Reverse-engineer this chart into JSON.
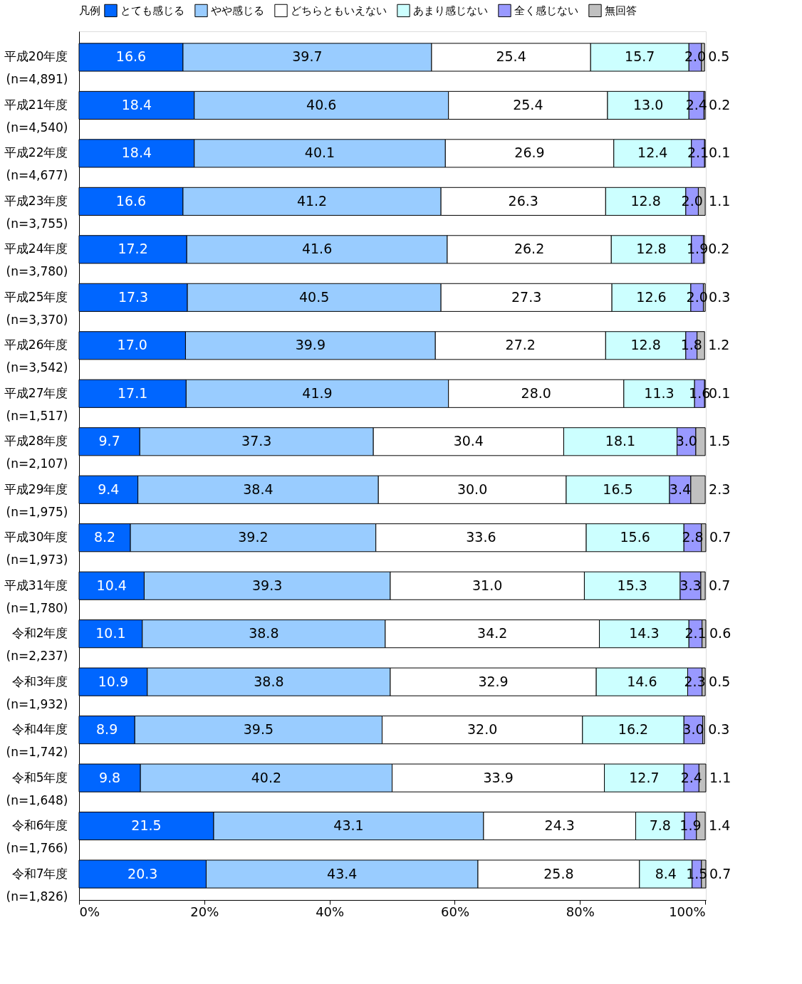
{
  "chart_data": {
    "type": "bar",
    "orientation": "horizontal",
    "stacked": true,
    "legend_title": "凡例",
    "legend": "top",
    "grid": false,
    "categories": [
      "平成20年度\n(n=4,891)",
      "平成21年度\n(n=4,540)",
      "平成22年度\n(n=4,677)",
      "平成23年度\n(n=3,755)",
      "平成24年度\n(n=3,780)",
      "平成25年度\n(n=3,370)",
      "平成26年度\n(n=3,542)",
      "平成27年度\n(n=1,517)",
      "平成28年度\n(n=2,107)",
      "平成29年度\n(n=1,975)",
      "平成30年度\n(n=1,973)",
      "平成31年度\n(n=1,780)",
      "令和2年度\n(n=2,237)",
      "令和3年度\n(n=1,932)",
      "令和4年度\n(n=1,742)",
      "令和5年度\n(n=1,648)",
      "令和6年度\n(n=1,766)",
      "令和7年度\n(n=1,826)"
    ],
    "series": [
      {
        "name": "とても感じる",
        "color": "#0066ff",
        "values": [
          16.6,
          18.4,
          18.4,
          16.6,
          17.2,
          17.3,
          17.0,
          17.1,
          9.7,
          9.4,
          8.2,
          10.4,
          10.1,
          10.9,
          8.9,
          9.8,
          21.5,
          20.3
        ],
        "value_labels": [
          "16.6",
          "18.4",
          "18.4",
          "16.6",
          "17.2",
          "17.3",
          "17.0",
          "17.1",
          "9.7",
          "9.4",
          "8.2",
          "10.4",
          "10.1",
          "10.9",
          "8.9",
          "9.8",
          "21.5",
          "20.3"
        ]
      },
      {
        "name": "やや感じる",
        "color": "#99ccff",
        "values": [
          39.7,
          40.6,
          40.1,
          41.2,
          41.6,
          40.5,
          39.9,
          41.9,
          37.3,
          38.4,
          39.2,
          39.3,
          38.8,
          38.8,
          39.5,
          40.2,
          43.1,
          43.4
        ],
        "value_labels": [
          "39.7",
          "40.6",
          "40.1",
          "41.2",
          "41.6",
          "40.5",
          "39.9",
          "41.9",
          "37.3",
          "38.4",
          "39.2",
          "39.3",
          "38.8",
          "38.8",
          "39.5",
          "40.2",
          "43.1",
          "43.4"
        ]
      },
      {
        "name": "どちらともいえない",
        "color": "#ffffff",
        "values": [
          25.4,
          25.4,
          26.9,
          26.3,
          26.2,
          27.3,
          27.2,
          28.0,
          30.4,
          30.0,
          33.6,
          31.0,
          34.2,
          32.9,
          32.0,
          33.9,
          24.3,
          25.8
        ],
        "value_labels": [
          "25.4",
          "25.4",
          "26.9",
          "26.3",
          "26.2",
          "27.3",
          "27.2",
          "28.0",
          "30.4",
          "30.0",
          "33.6",
          "31.0",
          "34.2",
          "32.9",
          "32.0",
          "33.9",
          "24.3",
          "25.8"
        ]
      },
      {
        "name": "あまり感じない",
        "color": "#ccffff",
        "values": [
          15.7,
          13.0,
          12.4,
          12.8,
          12.8,
          12.6,
          12.8,
          11.3,
          18.1,
          16.5,
          15.6,
          15.3,
          14.3,
          14.6,
          16.2,
          12.7,
          7.8,
          8.4
        ],
        "value_labels": [
          "15.7",
          "13.0",
          "12.4",
          "12.8",
          "12.8",
          "12.6",
          "12.8",
          "11.3",
          "18.1",
          "16.5",
          "15.6",
          "15.3",
          "14.3",
          "14.6",
          "16.2",
          "12.7",
          "7.8",
          "8.4"
        ]
      },
      {
        "name": "全く感じない",
        "color": "#9999ff",
        "values": [
          2.0,
          2.4,
          2.1,
          2.0,
          1.9,
          2.0,
          1.8,
          1.6,
          3.0,
          3.4,
          2.8,
          3.3,
          2.1,
          2.3,
          3.0,
          2.4,
          1.9,
          1.5
        ],
        "value_labels": [
          "2.0",
          "2.4",
          "2.1",
          "2.0",
          "1.9",
          "2.0",
          "1.8",
          "1.6",
          "3.0",
          "3.4",
          "2.8",
          "3.3",
          "2.1",
          "2.3",
          "3.0",
          "2.4",
          "1.9",
          "1.5"
        ]
      },
      {
        "name": "無回答",
        "color": "#c0c0c0",
        "values": [
          0.5,
          0.2,
          0.1,
          1.1,
          0.2,
          0.3,
          1.2,
          0.1,
          1.5,
          2.3,
          0.7,
          0.7,
          0.6,
          0.5,
          0.3,
          1.1,
          1.4,
          0.7
        ],
        "value_labels": [
          "0.5",
          "0.2",
          "0.1",
          "1.1",
          "0.2",
          "0.3",
          "1.2",
          "0.1",
          "1.5",
          "2.3",
          "0.7",
          "0.7",
          "0.6",
          "0.5",
          "0.3",
          "1.1",
          "1.4",
          "0.7"
        ]
      }
    ],
    "xlim": [
      0,
      100.1
    ],
    "xticks": [
      {
        "value": 0,
        "label": "0%"
      },
      {
        "value": 20,
        "label": "20%"
      },
      {
        "value": 40,
        "label": "40%"
      },
      {
        "value": 60,
        "label": "60%"
      },
      {
        "value": 80,
        "label": "80%"
      },
      {
        "value": 100,
        "label": "100%"
      }
    ]
  }
}
